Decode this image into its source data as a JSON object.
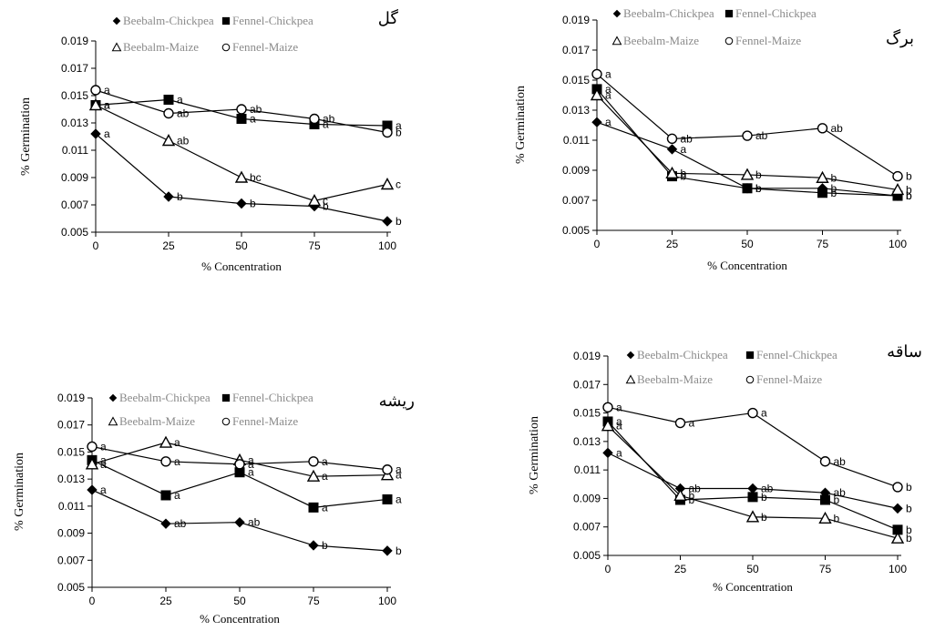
{
  "chart_data": [
    {
      "type": "line",
      "title": "گل",
      "xlabel": "% Concentration",
      "ylabel": "% Germination",
      "x": [
        0,
        25,
        50,
        75,
        100
      ],
      "xticks": [
        "0",
        "25",
        "50",
        "75",
        "100"
      ],
      "ylim": [
        0.005,
        0.019
      ],
      "yticks": [
        "0.005",
        "0.007",
        "0.009",
        "0.011",
        "0.013",
        "0.015",
        "0.017",
        "0.019"
      ],
      "grid": false,
      "legend_entries": [
        "Beebalm-Chickpea",
        "Fennel-Chickpea",
        "Beebalm-Maize",
        "Fennel-Maize"
      ],
      "series": [
        {
          "name": "Beebalm-Chickpea",
          "marker": "diamond",
          "values": [
            0.0122,
            0.0076,
            0.0071,
            0.0069,
            0.0058
          ],
          "labels": [
            "a",
            "b",
            "b",
            "b",
            "b"
          ]
        },
        {
          "name": "Fennel-Chickpea",
          "marker": "square",
          "values": [
            0.0143,
            0.0147,
            0.0133,
            0.0129,
            0.0128
          ],
          "labels": [
            "a",
            "a",
            "a",
            "a",
            "a"
          ]
        },
        {
          "name": "Beebalm-Maize",
          "marker": "triangle",
          "values": [
            0.0143,
            0.0117,
            0.009,
            0.0073,
            0.0085
          ],
          "labels": [
            "a",
            "ab",
            "bc",
            "c",
            "c"
          ]
        },
        {
          "name": "Fennel-Maize",
          "marker": "circle",
          "values": [
            0.0154,
            0.0137,
            0.014,
            0.0133,
            0.0123
          ],
          "labels": [
            "a",
            "ab",
            "ab",
            "ab",
            "b"
          ]
        }
      ]
    },
    {
      "type": "line",
      "title": "برگ",
      "xlabel": "% Concentration",
      "ylabel": "% Germination",
      "x": [
        0,
        25,
        50,
        75,
        100
      ],
      "xticks": [
        "0",
        "25",
        "50",
        "75",
        "100"
      ],
      "ylim": [
        0.005,
        0.019
      ],
      "yticks": [
        "0.005",
        "0.007",
        "0.009",
        "0.011",
        "0.013",
        "0.015",
        "0.017",
        "0.019"
      ],
      "grid": false,
      "legend_entries": [
        "Beebalm-Chickpea",
        "Fennel-Chickpea",
        "Beebalm-Maize",
        "Fennel-Maize"
      ],
      "series": [
        {
          "name": "Beebalm-Chickpea",
          "marker": "diamond",
          "values": [
            0.0122,
            0.0104,
            0.0078,
            0.0078,
            0.0073
          ],
          "labels": [
            "a",
            "a",
            "b",
            "b",
            "b"
          ]
        },
        {
          "name": "Fennel-Chickpea",
          "marker": "square",
          "values": [
            0.0144,
            0.0086,
            0.0078,
            0.0075,
            0.0073
          ],
          "labels": [
            "a",
            "b",
            "b",
            "b",
            "b"
          ]
        },
        {
          "name": "Beebalm-Maize",
          "marker": "triangle",
          "values": [
            0.014,
            0.0088,
            0.0087,
            0.0085,
            0.0077
          ],
          "labels": [
            "a",
            "b",
            "b",
            "b",
            "b"
          ]
        },
        {
          "name": "Fennel-Maize",
          "marker": "circle",
          "values": [
            0.0154,
            0.0111,
            0.0113,
            0.0118,
            0.0086
          ],
          "labels": [
            "a",
            "ab",
            "ab",
            "ab",
            "b"
          ]
        }
      ]
    },
    {
      "type": "line",
      "title": "ریشه",
      "xlabel": "% Concentration",
      "ylabel": "% Germination",
      "x": [
        0,
        25,
        50,
        75,
        100
      ],
      "xticks": [
        "0",
        "25",
        "50",
        "75",
        "100"
      ],
      "ylim": [
        0.005,
        0.019
      ],
      "yticks": [
        "0.005",
        "0.007",
        "0.009",
        "0.011",
        "0.013",
        "0.015",
        "0.017",
        "0.019"
      ],
      "grid": false,
      "legend_entries": [
        "Beebalm-Chickpea",
        "Fennel-Chickpea",
        "Beebalm-Maize",
        "Fennel-Maize"
      ],
      "series": [
        {
          "name": "Beebalm-Chickpea",
          "marker": "diamond",
          "values": [
            0.0122,
            0.0097,
            0.0098,
            0.0081,
            0.0077
          ],
          "labels": [
            "a",
            "ab",
            "ab",
            "b",
            "b"
          ]
        },
        {
          "name": "Fennel-Chickpea",
          "marker": "square",
          "values": [
            0.0144,
            0.0118,
            0.0135,
            0.0109,
            0.0115
          ],
          "labels": [
            "a",
            "a",
            "a",
            "a",
            "a"
          ]
        },
        {
          "name": "Beebalm-Maize",
          "marker": "triangle",
          "values": [
            0.0141,
            0.0157,
            0.0144,
            0.0132,
            0.0133
          ],
          "labels": [
            "a",
            "a",
            "a",
            "a",
            "a"
          ]
        },
        {
          "name": "Fennel-Maize",
          "marker": "circle",
          "values": [
            0.0154,
            0.0143,
            0.0141,
            0.0143,
            0.0137
          ],
          "labels": [
            "a",
            "a",
            "a",
            "a",
            "a"
          ]
        }
      ]
    },
    {
      "type": "line",
      "title": "ساقه",
      "xlabel": "% Concentration",
      "ylabel": "% Germination",
      "x": [
        0,
        25,
        50,
        75,
        100
      ],
      "xticks": [
        "0",
        "25",
        "50",
        "75",
        "100"
      ],
      "ylim": [
        0.005,
        0.019
      ],
      "yticks": [
        "0.005",
        "0.007",
        "0.009",
        "0.011",
        "0.013",
        "0.015",
        "0.017",
        "0.019"
      ],
      "grid": false,
      "legend_entries": [
        "Beebalm-Chickpea",
        "Fennel-Chickpea",
        "Beebalm-Maize",
        "Fennel-Maize"
      ],
      "series": [
        {
          "name": "Beebalm-Chickpea",
          "marker": "diamond",
          "values": [
            0.0122,
            0.0097,
            0.0097,
            0.0094,
            0.0083
          ],
          "labels": [
            "a",
            "ab",
            "ab",
            "ab",
            "b"
          ]
        },
        {
          "name": "Fennel-Chickpea",
          "marker": "square",
          "values": [
            0.0144,
            0.0089,
            0.0091,
            0.0089,
            0.0068
          ],
          "labels": [
            "a",
            "b",
            "b",
            "b",
            "b"
          ]
        },
        {
          "name": "Beebalm-Maize",
          "marker": "triangle",
          "values": [
            0.0141,
            0.0092,
            0.0077,
            0.0076,
            0.0062
          ],
          "labels": [
            "a",
            "b",
            "b",
            "b",
            "b"
          ]
        },
        {
          "name": "Fennel-Maize",
          "marker": "circle",
          "values": [
            0.0154,
            0.0143,
            0.015,
            0.0116,
            0.0098
          ],
          "labels": [
            "a",
            "a",
            "a",
            "ab",
            "b"
          ]
        }
      ]
    }
  ]
}
